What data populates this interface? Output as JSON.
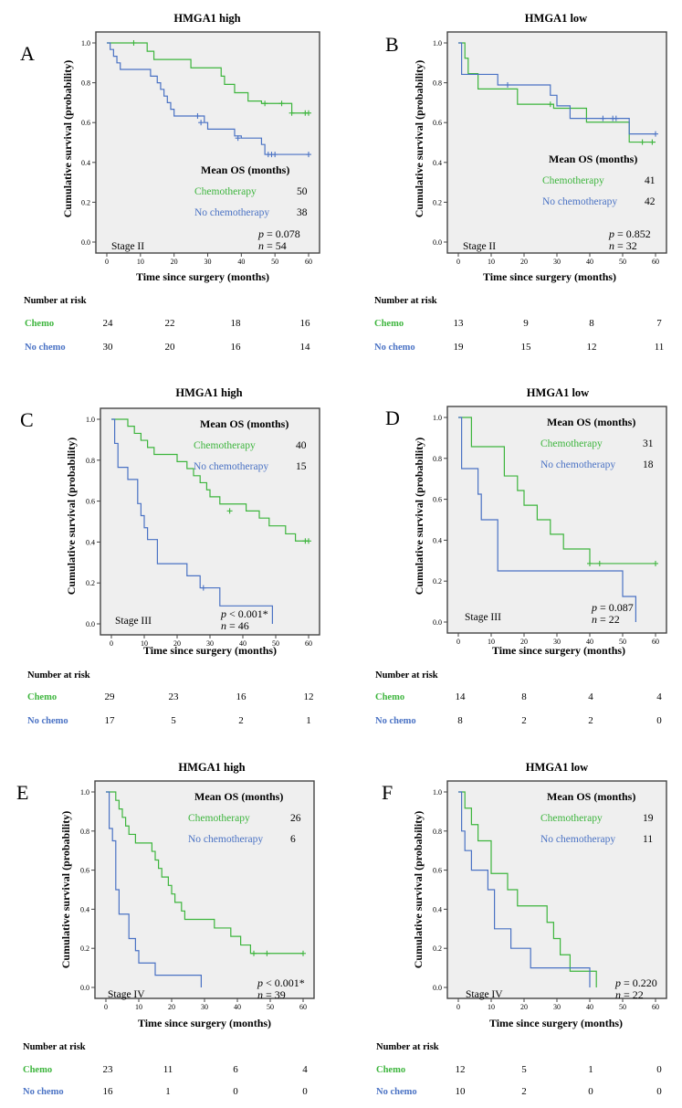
{
  "colors": {
    "chemo": "#3db53d",
    "nochemo": "#4a72c4",
    "plot_bg": "#efefef",
    "frame": "#444444"
  },
  "labels": {
    "ylabel": "Cumulative survival (probability)",
    "xlabel": "Time since surgery (months)",
    "mean_os": "Mean OS (months)",
    "chemo_legend": "Chemotherapy",
    "nochemo_legend": "No chemotherapy",
    "risk_title": "Number at risk",
    "risk_chemo": "Chemo",
    "risk_nochemo": "No chemo"
  },
  "chart_data": [
    {
      "panel": "A",
      "title": "HMGA1 high",
      "type": "line",
      "stage": "Stage II",
      "p": "= 0.078",
      "n": "= 54",
      "mean_os": {
        "chemo": "50",
        "nochemo": "38"
      },
      "xlim": [
        0,
        60
      ],
      "ylim": [
        0,
        1
      ],
      "xticks": [
        "0",
        "10",
        "20",
        "30",
        "40",
        "50",
        "60"
      ],
      "yticks": [
        "0.0",
        "0.2",
        "0.4",
        "0.6",
        "0.8",
        "1.0"
      ],
      "series": [
        {
          "name": "Chemotherapy",
          "steps": [
            [
              0,
              1
            ],
            [
              12,
              0.958
            ],
            [
              14,
              0.917
            ],
            [
              25,
              0.875
            ],
            [
              34,
              0.833
            ],
            [
              35,
              0.792
            ],
            [
              38,
              0.75
            ],
            [
              42,
              0.708
            ],
            [
              46,
              0.696
            ],
            [
              55,
              0.648
            ]
          ],
          "censors": [
            [
              8,
              1
            ],
            [
              47,
              0.696
            ],
            [
              52,
              0.696
            ],
            [
              55,
              0.648
            ],
            [
              59,
              0.648
            ],
            [
              60,
              0.648
            ]
          ],
          "end": 60
        },
        {
          "name": "No chemotherapy",
          "steps": [
            [
              0,
              1
            ],
            [
              1,
              0.967
            ],
            [
              2,
              0.933
            ],
            [
              3,
              0.9
            ],
            [
              4,
              0.867
            ],
            [
              13,
              0.833
            ],
            [
              15,
              0.8
            ],
            [
              16,
              0.767
            ],
            [
              17,
              0.733
            ],
            [
              18,
              0.7
            ],
            [
              19,
              0.667
            ],
            [
              20,
              0.633
            ],
            [
              29,
              0.6
            ],
            [
              30,
              0.567
            ],
            [
              38,
              0.533
            ],
            [
              40,
              0.522
            ],
            [
              46,
              0.49
            ],
            [
              47,
              0.44
            ]
          ],
          "censors": [
            [
              27,
              0.633
            ],
            [
              28,
              0.6
            ],
            [
              39,
              0.522
            ],
            [
              48,
              0.44
            ],
            [
              49,
              0.44
            ],
            [
              50,
              0.44
            ],
            [
              60,
              0.44
            ]
          ],
          "end": 60
        }
      ],
      "risk_x": [
        "0",
        "20",
        "40",
        "60"
      ],
      "risk": {
        "chemo": [
          "24",
          "22",
          "18",
          "16"
        ],
        "nochemo": [
          "30",
          "20",
          "16",
          "14"
        ]
      }
    },
    {
      "panel": "B",
      "title": "HMGA1 low",
      "type": "line",
      "stage": "Stage II",
      "p": "= 0.852",
      "n": "= 32",
      "mean_os": {
        "chemo": "41",
        "nochemo": "42"
      },
      "xlim": [
        0,
        60
      ],
      "ylim": [
        0,
        1
      ],
      "xticks": [
        "0",
        "10",
        "20",
        "30",
        "40",
        "50",
        "60"
      ],
      "yticks": [
        "0.0",
        "0.2",
        "0.4",
        "0.6",
        "0.8",
        "1.0"
      ],
      "series": [
        {
          "name": "Chemotherapy",
          "steps": [
            [
              0,
              1
            ],
            [
              2,
              0.923
            ],
            [
              3,
              0.846
            ],
            [
              6,
              0.769
            ],
            [
              18,
              0.692
            ],
            [
              28,
              0.692
            ],
            [
              29,
              0.672
            ],
            [
              39,
              0.602
            ],
            [
              52,
              0.502
            ]
          ],
          "censors": [
            [
              28,
              0.692
            ],
            [
              56,
              0.502
            ],
            [
              59,
              0.502
            ]
          ],
          "end": 60
        },
        {
          "name": "No chemotherapy",
          "steps": [
            [
              0,
              1
            ],
            [
              1,
              0.842
            ],
            [
              12,
              0.789
            ],
            [
              28,
              0.737
            ],
            [
              30,
              0.684
            ],
            [
              34,
              0.621
            ],
            [
              46,
              0.621
            ],
            [
              52,
              0.543
            ]
          ],
          "censors": [
            [
              15,
              0.789
            ],
            [
              44,
              0.621
            ],
            [
              47,
              0.621
            ],
            [
              48,
              0.621
            ],
            [
              60,
              0.543
            ]
          ],
          "end": 60
        }
      ],
      "risk_x": [
        "0",
        "20",
        "40",
        "60"
      ],
      "risk": {
        "chemo": [
          "13",
          "9",
          "8",
          "7"
        ],
        "nochemo": [
          "19",
          "15",
          "12",
          "11"
        ]
      }
    },
    {
      "panel": "C",
      "title": "HMGA1 high",
      "type": "line",
      "stage": "Stage III",
      "p": "< 0.001*",
      "n": "= 46",
      "mean_os": {
        "chemo": "40",
        "nochemo": "15"
      },
      "xlim": [
        0,
        60
      ],
      "ylim": [
        0,
        1
      ],
      "xticks": [
        "0",
        "10",
        "20",
        "30",
        "40",
        "50",
        "60"
      ],
      "yticks": [
        "0.0",
        "0.2",
        "0.4",
        "0.6",
        "0.8",
        "1.0"
      ],
      "series": [
        {
          "name": "Chemotherapy",
          "steps": [
            [
              0,
              1
            ],
            [
              5,
              0.966
            ],
            [
              7,
              0.931
            ],
            [
              9,
              0.897
            ],
            [
              11,
              0.862
            ],
            [
              13,
              0.828
            ],
            [
              20,
              0.793
            ],
            [
              23,
              0.759
            ],
            [
              25,
              0.724
            ],
            [
              27,
              0.69
            ],
            [
              29,
              0.655
            ],
            [
              30,
              0.621
            ],
            [
              33,
              0.586
            ],
            [
              41,
              0.552
            ],
            [
              45,
              0.517
            ],
            [
              48,
              0.479
            ],
            [
              53,
              0.44
            ],
            [
              56,
              0.405
            ]
          ],
          "censors": [
            [
              36,
              0.552
            ],
            [
              59,
              0.405
            ],
            [
              60,
              0.405
            ]
          ],
          "end": 60
        },
        {
          "name": "No chemotherapy",
          "steps": [
            [
              0,
              1
            ],
            [
              1,
              0.882
            ],
            [
              2,
              0.765
            ],
            [
              5,
              0.706
            ],
            [
              8,
              0.588
            ],
            [
              9,
              0.529
            ],
            [
              10,
              0.47
            ],
            [
              11,
              0.412
            ],
            [
              14,
              0.294
            ],
            [
              23,
              0.235
            ],
            [
              27,
              0.176
            ],
            [
              33,
              0.088
            ],
            [
              49,
              0.0
            ]
          ],
          "censors": [
            [
              28,
              0.176
            ]
          ],
          "end": 49
        }
      ],
      "risk_x": [
        "0",
        "20",
        "40",
        "60"
      ],
      "risk": {
        "chemo": [
          "29",
          "23",
          "16",
          "12"
        ],
        "nochemo": [
          "17",
          "5",
          "2",
          "1"
        ]
      }
    },
    {
      "panel": "D",
      "title": "HMGA1 low",
      "type": "line",
      "stage": "Stage III",
      "p": "= 0.087",
      "n": "= 22",
      "mean_os": {
        "chemo": "31",
        "nochemo": "18"
      },
      "xlim": [
        0,
        60
      ],
      "ylim": [
        0,
        1
      ],
      "xticks": [
        "0",
        "10",
        "20",
        "30",
        "40",
        "50",
        "60"
      ],
      "yticks": [
        "0.0",
        "0.2",
        "0.4",
        "0.6",
        "0.8",
        "1.0"
      ],
      "series": [
        {
          "name": "Chemotherapy",
          "steps": [
            [
              0,
              1
            ],
            [
              4,
              0.857
            ],
            [
              14,
              0.714
            ],
            [
              18,
              0.643
            ],
            [
              20,
              0.571
            ],
            [
              24,
              0.5
            ],
            [
              28,
              0.429
            ],
            [
              32,
              0.357
            ],
            [
              40,
              0.286
            ]
          ],
          "censors": [
            [
              40,
              0.286
            ],
            [
              43,
              0.286
            ],
            [
              60,
              0.286
            ]
          ],
          "end": 60
        },
        {
          "name": "No chemotherapy",
          "steps": [
            [
              0,
              1
            ],
            [
              1,
              0.75
            ],
            [
              6,
              0.625
            ],
            [
              7,
              0.5
            ],
            [
              12,
              0.25
            ],
            [
              50,
              0.125
            ],
            [
              54,
              0.0
            ]
          ],
          "censors": [],
          "end": 54
        }
      ],
      "risk_x": [
        "0",
        "20",
        "40",
        "60"
      ],
      "risk": {
        "chemo": [
          "14",
          "8",
          "4",
          "4"
        ],
        "nochemo": [
          "8",
          "2",
          "2",
          "0"
        ]
      }
    },
    {
      "panel": "E",
      "title": "HMGA1 high",
      "type": "line",
      "stage": "Stage IV",
      "p": "< 0.001*",
      "n": "= 39",
      "mean_os": {
        "chemo": "26",
        "nochemo": "6"
      },
      "xlim": [
        0,
        60
      ],
      "ylim": [
        0,
        1
      ],
      "xticks": [
        "0",
        "10",
        "20",
        "30",
        "40",
        "50",
        "60"
      ],
      "yticks": [
        "0.0",
        "0.2",
        "0.4",
        "0.6",
        "0.8",
        "1.0"
      ],
      "series": [
        {
          "name": "Chemotherapy",
          "steps": [
            [
              0,
              1
            ],
            [
              3,
              0.957
            ],
            [
              4,
              0.913
            ],
            [
              5,
              0.87
            ],
            [
              6,
              0.826
            ],
            [
              7,
              0.783
            ],
            [
              9,
              0.739
            ],
            [
              14,
              0.696
            ],
            [
              15,
              0.652
            ],
            [
              16,
              0.609
            ],
            [
              17,
              0.565
            ],
            [
              19,
              0.522
            ],
            [
              20,
              0.478
            ],
            [
              21,
              0.435
            ],
            [
              23,
              0.391
            ],
            [
              24,
              0.348
            ],
            [
              33,
              0.304
            ],
            [
              38,
              0.261
            ],
            [
              41,
              0.217
            ],
            [
              44,
              0.174
            ]
          ],
          "censors": [
            [
              45,
              0.174
            ],
            [
              49,
              0.174
            ],
            [
              60,
              0.174
            ]
          ],
          "end": 60
        },
        {
          "name": "No chemotherapy",
          "steps": [
            [
              0,
              1
            ],
            [
              1,
              0.813
            ],
            [
              2,
              0.75
            ],
            [
              3,
              0.5
            ],
            [
              4,
              0.375
            ],
            [
              7,
              0.25
            ],
            [
              9,
              0.188
            ],
            [
              10,
              0.125
            ],
            [
              15,
              0.0625
            ],
            [
              29,
              0.0
            ]
          ],
          "censors": [],
          "end": 29
        }
      ],
      "risk_x": [
        "0",
        "20",
        "40",
        "60"
      ],
      "risk": {
        "chemo": [
          "23",
          "11",
          "6",
          "4"
        ],
        "nochemo": [
          "16",
          "1",
          "0",
          "0"
        ]
      }
    },
    {
      "panel": "F",
      "title": "HMGA1 low",
      "type": "line",
      "stage": "Stage IV",
      "p": "= 0.220",
      "n": "= 22",
      "mean_os": {
        "chemo": "19",
        "nochemo": "11"
      },
      "xlim": [
        0,
        60
      ],
      "ylim": [
        0,
        1
      ],
      "xticks": [
        "0",
        "10",
        "20",
        "30",
        "40",
        "50",
        "60"
      ],
      "yticks": [
        "0.0",
        "0.2",
        "0.4",
        "0.6",
        "0.8",
        "1.0"
      ],
      "series": [
        {
          "name": "Chemotherapy",
          "steps": [
            [
              0,
              1
            ],
            [
              2,
              0.917
            ],
            [
              4,
              0.833
            ],
            [
              6,
              0.75
            ],
            [
              10,
              0.583
            ],
            [
              15,
              0.5
            ],
            [
              18,
              0.417
            ],
            [
              27,
              0.333
            ],
            [
              29,
              0.25
            ],
            [
              31,
              0.167
            ],
            [
              34,
              0.083
            ],
            [
              42,
              0.0
            ]
          ],
          "censors": [],
          "end": 42
        },
        {
          "name": "No chemotherapy",
          "steps": [
            [
              0,
              1
            ],
            [
              1,
              0.8
            ],
            [
              2,
              0.7
            ],
            [
              4,
              0.6
            ],
            [
              9,
              0.5
            ],
            [
              11,
              0.3
            ],
            [
              16,
              0.2
            ],
            [
              22,
              0.1
            ],
            [
              40,
              0.0
            ]
          ],
          "censors": [],
          "end": 40
        }
      ],
      "risk_x": [
        "0",
        "20",
        "40",
        "60"
      ],
      "risk": {
        "chemo": [
          "12",
          "5",
          "1",
          "0"
        ],
        "nochemo": [
          "10",
          "2",
          "0",
          "0"
        ]
      }
    }
  ]
}
